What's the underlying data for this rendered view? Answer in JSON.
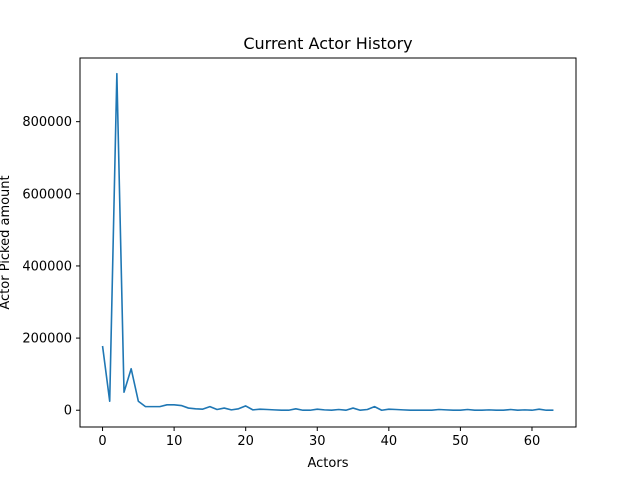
{
  "chart_data": {
    "type": "line",
    "title": "Current Actor History",
    "xlabel": "Actors",
    "ylabel": "Actor Picked amount",
    "xlim": [
      -3.15,
      66.15
    ],
    "ylim": [
      -46500,
      976500
    ],
    "xticks": [
      0,
      10,
      20,
      30,
      40,
      50,
      60
    ],
    "yticks": [
      0,
      200000,
      400000,
      600000,
      800000
    ],
    "ytick_labels": [
      "0",
      "200000",
      "400000",
      "600000",
      "800000"
    ],
    "grid": false,
    "line_color": "#1f77b4",
    "series": [
      {
        "x": [
          0,
          1,
          2,
          3,
          4,
          5,
          6,
          7,
          8,
          9,
          10,
          11,
          12,
          13,
          14,
          15,
          16,
          17,
          18,
          19,
          20,
          21,
          22,
          23,
          24,
          25,
          26,
          27,
          28,
          29,
          30,
          31,
          32,
          33,
          34,
          35,
          36,
          37,
          38,
          39,
          40,
          41,
          42,
          43,
          44,
          45,
          46,
          47,
          48,
          49,
          50,
          51,
          52,
          53,
          54,
          55,
          56,
          57,
          58,
          59,
          60,
          61,
          62,
          63
        ],
        "values": [
          178000,
          25000,
          933000,
          50000,
          115000,
          25000,
          10000,
          10000,
          10000,
          15000,
          15000,
          13000,
          6000,
          4000,
          3000,
          10000,
          2000,
          6000,
          1000,
          4000,
          12000,
          1000,
          3000,
          2000,
          1000,
          0,
          0,
          4000,
          0,
          0,
          3000,
          1000,
          0,
          2000,
          0,
          6000,
          0,
          2000,
          10000,
          0,
          3000,
          2000,
          1000,
          0,
          0,
          0,
          0,
          2000,
          1000,
          0,
          0,
          2000,
          0,
          0,
          1000,
          0,
          0,
          2000,
          0,
          1000,
          0,
          3000,
          0,
          0
        ]
      }
    ]
  }
}
